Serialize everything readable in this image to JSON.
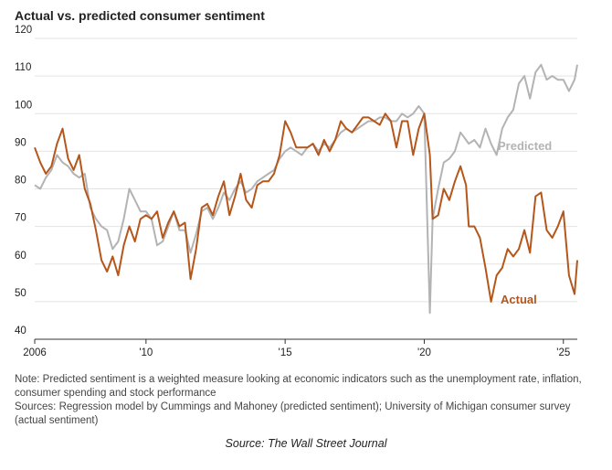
{
  "chart_data": {
    "type": "line",
    "title": "Actual vs. predicted consumer sentiment",
    "note": "Note: Predicted sentiment is a weighted measure looking at economic indicators such as the unemployment rate, inflation, consumer spending and stock performance",
    "sources": "Sources: Regression model by Cummings and Mahoney (predicted sentiment); University of Michigan consumer survey (actual sentiment)",
    "caption": "Source: The Wall Street Journal",
    "xlim": [
      2006,
      2025.5
    ],
    "xticks": [
      2006,
      {
        "value": 2010,
        "label": "'10"
      },
      {
        "value": 2015,
        "label": "'15"
      },
      {
        "value": 2020,
        "label": "'20"
      },
      {
        "value": 2025,
        "label": "'25"
      }
    ],
    "ylim": [
      40,
      120
    ],
    "yticks": [
      40,
      50,
      60,
      70,
      80,
      90,
      100,
      110,
      120
    ],
    "grid": true,
    "x": [
      2006.0,
      2006.2,
      2006.4,
      2006.6,
      2006.8,
      2007.0,
      2007.2,
      2007.4,
      2007.6,
      2007.8,
      2008.0,
      2008.2,
      2008.4,
      2008.6,
      2008.8,
      2009.0,
      2009.2,
      2009.4,
      2009.6,
      2009.8,
      2010.0,
      2010.2,
      2010.4,
      2010.6,
      2010.8,
      2011.0,
      2011.2,
      2011.4,
      2011.6,
      2011.8,
      2012.0,
      2012.2,
      2012.4,
      2012.6,
      2012.8,
      2013.0,
      2013.2,
      2013.4,
      2013.6,
      2013.8,
      2014.0,
      2014.2,
      2014.4,
      2014.6,
      2014.8,
      2015.0,
      2015.2,
      2015.4,
      2015.6,
      2015.8,
      2016.0,
      2016.2,
      2016.4,
      2016.6,
      2016.8,
      2017.0,
      2017.2,
      2017.4,
      2017.6,
      2017.8,
      2018.0,
      2018.2,
      2018.4,
      2018.6,
      2018.8,
      2019.0,
      2019.2,
      2019.4,
      2019.6,
      2019.8,
      2020.0,
      2020.2,
      2020.3,
      2020.5,
      2020.7,
      2020.9,
      2021.1,
      2021.3,
      2021.5,
      2021.6,
      2021.8,
      2022.0,
      2022.2,
      2022.4,
      2022.6,
      2022.8,
      2023.0,
      2023.2,
      2023.4,
      2023.6,
      2023.8,
      2024.0,
      2024.2,
      2024.4,
      2024.6,
      2024.8,
      2025.0,
      2025.2,
      2025.4,
      2025.5
    ],
    "series": [
      {
        "name": "Predicted",
        "color": "#b3b3b3",
        "values": [
          81,
          80,
          83,
          85,
          89,
          87,
          86,
          84,
          83,
          84,
          75,
          72,
          70,
          69,
          64,
          66,
          72,
          80,
          77,
          74,
          74,
          72,
          65,
          66,
          70,
          74,
          69,
          69,
          63,
          68,
          74,
          75,
          72,
          75,
          79,
          77,
          80,
          82,
          79,
          80,
          82,
          83,
          84,
          85,
          88,
          90,
          91,
          90,
          89,
          91,
          92,
          90,
          92,
          91,
          93,
          95,
          96,
          95,
          96,
          97,
          98,
          98,
          99,
          99,
          98,
          98,
          100,
          99,
          100,
          102,
          100,
          47,
          72,
          80,
          87,
          88,
          90,
          95,
          93,
          92,
          93,
          91,
          96,
          92,
          89,
          96,
          99,
          101,
          108,
          110,
          104,
          111,
          113,
          109,
          110,
          109,
          109,
          106,
          109,
          113
        ]
      },
      {
        "name": "Actual",
        "color": "#b5561b",
        "values": [
          91,
          87,
          84,
          86,
          92,
          96,
          88,
          85,
          89,
          80,
          76,
          69,
          61,
          58,
          62,
          57,
          65,
          70,
          66,
          72,
          73,
          72,
          74,
          67,
          71,
          74,
          70,
          71,
          56,
          64,
          75,
          76,
          73,
          78,
          82,
          73,
          78,
          84,
          77,
          75,
          81,
          82,
          82,
          84,
          89,
          98,
          95,
          91,
          91,
          91,
          92,
          89,
          93,
          90,
          93,
          98,
          96,
          95,
          97,
          99,
          99,
          98,
          97,
          100,
          98,
          91,
          98,
          98,
          89,
          96,
          100,
          89,
          72,
          73,
          80,
          77,
          82,
          86,
          81,
          70,
          70,
          67,
          59,
          50,
          57,
          59,
          64,
          62,
          64,
          69,
          63,
          78,
          79,
          69,
          67,
          70,
          74,
          57,
          52,
          61
        ]
      }
    ]
  }
}
